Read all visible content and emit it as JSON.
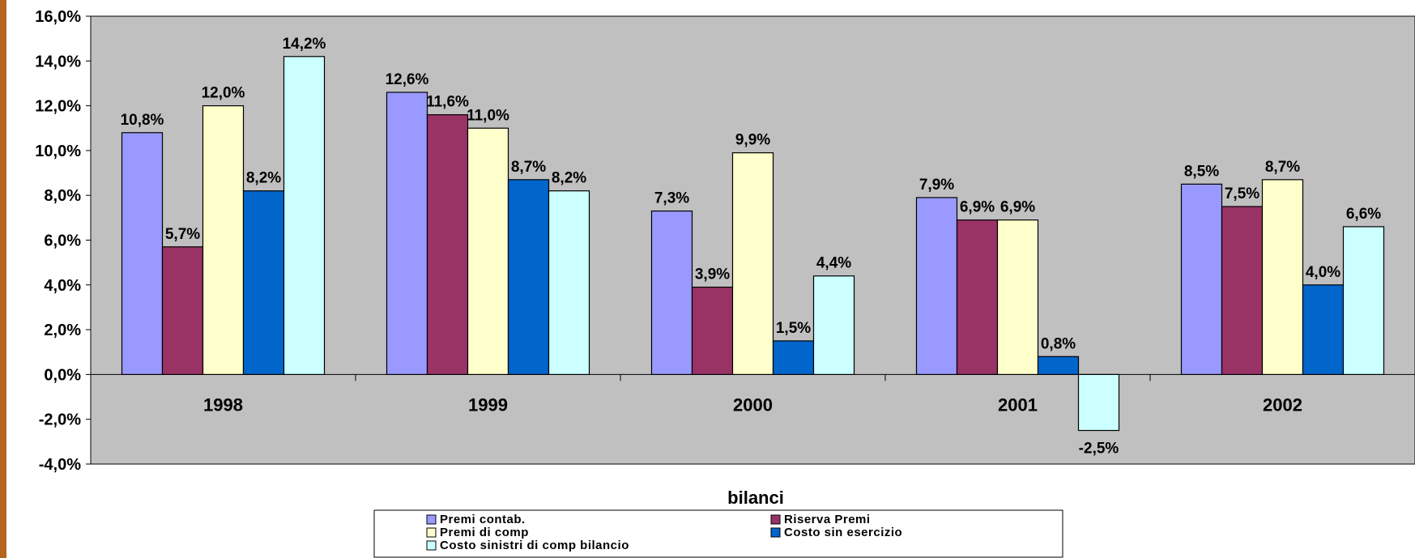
{
  "chart_data": {
    "type": "bar",
    "categories": [
      "1998",
      "1999",
      "2000",
      "2001",
      "2002"
    ],
    "series": [
      {
        "name": "Premi contab.",
        "color": "#9999FF",
        "values": [
          10.8,
          12.6,
          7.3,
          7.9,
          8.5
        ],
        "labels": [
          "10,8%",
          "12,6%",
          "7,3%",
          "7,9%",
          "8,5%"
        ]
      },
      {
        "name": "Riserva Premi",
        "color": "#993366",
        "values": [
          5.7,
          11.6,
          3.9,
          6.9,
          7.5
        ],
        "labels": [
          "5,7%",
          "11,6%",
          "3,9%",
          "6,9%",
          "7,5%"
        ]
      },
      {
        "name": "Premi di comp",
        "color": "#FFFFCC",
        "values": [
          12.0,
          11.0,
          9.9,
          6.9,
          8.7
        ],
        "labels": [
          "12,0%",
          "11,0%",
          "9,9%",
          "6,9%",
          "8,7%"
        ]
      },
      {
        "name": "Costo sin esercizio",
        "color": "#0066CC",
        "values": [
          8.2,
          8.7,
          1.5,
          0.8,
          4.0
        ],
        "labels": [
          "8,2%",
          "8,7%",
          "1,5%",
          "0,8%",
          "4,0%"
        ]
      },
      {
        "name": "Costo sinistri di comp bilancio",
        "color": "#CCFFFF",
        "values": [
          14.2,
          8.2,
          4.4,
          -2.5,
          6.6
        ],
        "labels": [
          "14,2%",
          "8,2%",
          "4,4%",
          "-2,5%",
          "6,6%"
        ]
      }
    ],
    "yticks": [
      "16,0%",
      "14,0%",
      "12,0%",
      "10,0%",
      "8,0%",
      "6,0%",
      "4,0%",
      "2,0%",
      "0,0%",
      "-2,0%",
      "-4,0%"
    ],
    "ylim": [
      -4,
      16
    ],
    "ystep": 2,
    "legend_title": "bilanci",
    "legend_position": "bottom",
    "plot_background": "#C0C0C0",
    "grid": false
  }
}
